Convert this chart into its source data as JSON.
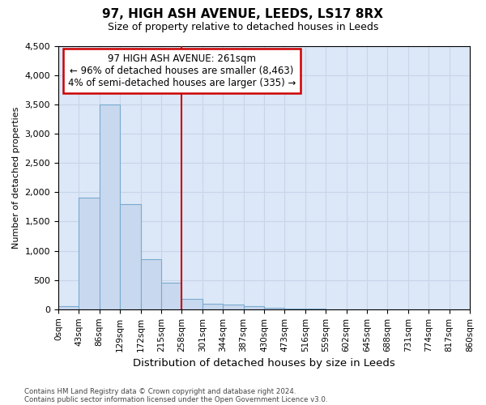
{
  "title": "97, HIGH ASH AVENUE, LEEDS, LS17 8RX",
  "subtitle": "Size of property relative to detached houses in Leeds",
  "xlabel": "Distribution of detached houses by size in Leeds",
  "ylabel": "Number of detached properties",
  "bin_labels": [
    "0sqm",
    "43sqm",
    "86sqm",
    "129sqm",
    "172sqm",
    "215sqm",
    "258sqm",
    "301sqm",
    "344sqm",
    "387sqm",
    "430sqm",
    "473sqm",
    "516sqm",
    "559sqm",
    "602sqm",
    "645sqm",
    "688sqm",
    "731sqm",
    "774sqm",
    "817sqm",
    "860sqm"
  ],
  "bar_heights": [
    50,
    1900,
    3500,
    1800,
    850,
    450,
    175,
    100,
    75,
    50,
    30,
    15,
    5,
    3,
    2,
    1,
    1,
    0,
    0,
    0
  ],
  "bar_color": "#c8d8ee",
  "bar_edge_color": "#7aaad0",
  "property_line_bin": 6,
  "ylim": [
    0,
    4500
  ],
  "yticks": [
    0,
    500,
    1000,
    1500,
    2000,
    2500,
    3000,
    3500,
    4000,
    4500
  ],
  "annotation_title": "97 HIGH ASH AVENUE: 261sqm",
  "annotation_line1": "← 96% of detached houses are smaller (8,463)",
  "annotation_line2": "4% of semi-detached houses are larger (335) →",
  "annotation_box_facecolor": "#ffffff",
  "annotation_box_edgecolor": "#cc0000",
  "vline_color": "#cc0000",
  "grid_color": "#c8d4e8",
  "background_color": "#dce8f8",
  "footer_line1": "Contains HM Land Registry data © Crown copyright and database right 2024.",
  "footer_line2": "Contains public sector information licensed under the Open Government Licence v3.0."
}
